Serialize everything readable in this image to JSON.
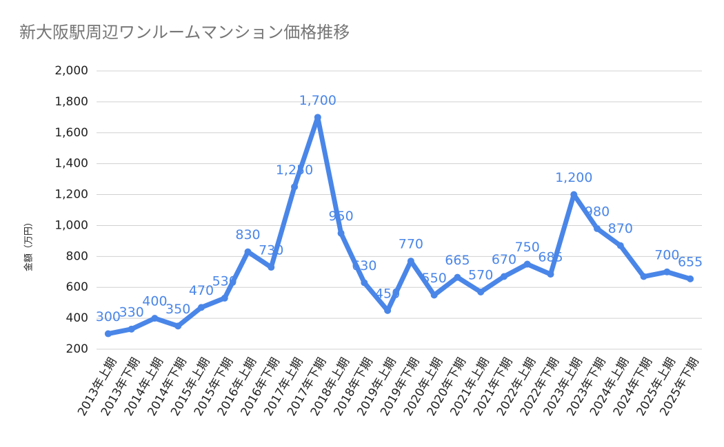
{
  "chart_data": {
    "type": "line",
    "title": "新大阪駅周辺ワンルームマンション価格推移",
    "y_label": "金額（万円）",
    "categories": [
      "2013年上期",
      "2013年下期",
      "2014年上期",
      "2014年下期",
      "2015年上期",
      "2015年下期",
      "2016年上期",
      "2016年下期",
      "2017年上期",
      "2017年下期",
      "2018年上期",
      "2018年下期",
      "2019年上期",
      "2019年下期",
      "2020年上期",
      "2020年下期",
      "2021年上期",
      "2021年下期",
      "2022年上期",
      "2022年下期",
      "2023年上期",
      "2023年下期",
      "2024年上期",
      "2024年下期",
      "2025年上期",
      "2025年下期"
    ],
    "values": [
      300,
      330,
      400,
      350,
      470,
      530,
      830,
      730,
      1250,
      1700,
      950,
      630,
      450,
      770,
      550,
      665,
      570,
      670,
      750,
      685,
      1200,
      980,
      870,
      670,
      700,
      655
    ],
    "value_labels": [
      "300",
      "330",
      "400",
      "350",
      "470",
      "530",
      "830",
      "730",
      "1,250",
      "1,700",
      "950",
      "630",
      "450",
      "770",
      "550",
      "665",
      "570",
      "670",
      "750",
      "685",
      "1,200",
      "980",
      "870",
      null,
      "700",
      "655"
    ],
    "color": "#4a86e8",
    "ylim": [
      200,
      2000
    ],
    "yticks": [
      200,
      400,
      600,
      800,
      {
        "value": 1000,
        "label": "1,000"
      },
      {
        "value": 1200,
        "label": "1,200"
      },
      {
        "value": 1400,
        "label": "1,400"
      },
      {
        "value": 1600,
        "label": "1,600"
      },
      {
        "value": 1800,
        "label": "1,800"
      },
      {
        "value": 2000,
        "label": "2,000"
      }
    ],
    "grid": true
  }
}
